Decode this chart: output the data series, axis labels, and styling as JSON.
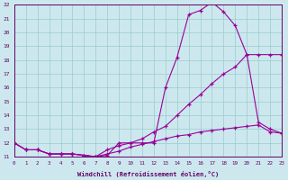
{
  "xlabel": "Windchill (Refroidissement éolien,°C)",
  "ylabel": "",
  "bg_color": "#cce8ee",
  "grid_color": "#99cccc",
  "line_color": "#990099",
  "xmin": 0,
  "xmax": 23,
  "ymin": 11,
  "ymax": 22,
  "line1_x": [
    0,
    1,
    2,
    3,
    4,
    5,
    6,
    7,
    8,
    9,
    10,
    11,
    12,
    13,
    14,
    15,
    16,
    17,
    18,
    19,
    20,
    21,
    22,
    23
  ],
  "line1_y": [
    12,
    11.5,
    11.5,
    11.2,
    11.2,
    11.2,
    11.1,
    11.0,
    11.1,
    12.0,
    12.0,
    12.0,
    12.0,
    16.0,
    18.2,
    21.3,
    21.6,
    22.2,
    21.5,
    20.5,
    18.4,
    18.4,
    18.4,
    18.4
  ],
  "line2_x": [
    0,
    1,
    2,
    3,
    4,
    5,
    6,
    7,
    8,
    9,
    10,
    11,
    12,
    13,
    14,
    15,
    16,
    17,
    18,
    19,
    20,
    21,
    22,
    23
  ],
  "line2_y": [
    12,
    11.5,
    11.5,
    11.2,
    11.2,
    11.2,
    11.1,
    11.0,
    11.5,
    11.8,
    12.0,
    12.3,
    12.8,
    13.2,
    14.0,
    14.8,
    15.5,
    16.3,
    17.0,
    17.5,
    18.4,
    13.5,
    13.0,
    12.7
  ],
  "line3_x": [
    0,
    1,
    2,
    3,
    4,
    5,
    6,
    7,
    8,
    9,
    10,
    11,
    12,
    13,
    14,
    15,
    16,
    17,
    18,
    19,
    20,
    21,
    22,
    23
  ],
  "line3_y": [
    12,
    11.5,
    11.5,
    11.2,
    11.2,
    11.2,
    11.1,
    11.0,
    11.2,
    11.4,
    11.7,
    11.9,
    12.1,
    12.3,
    12.5,
    12.6,
    12.8,
    12.9,
    13.0,
    13.1,
    13.2,
    13.3,
    12.8,
    12.7
  ]
}
